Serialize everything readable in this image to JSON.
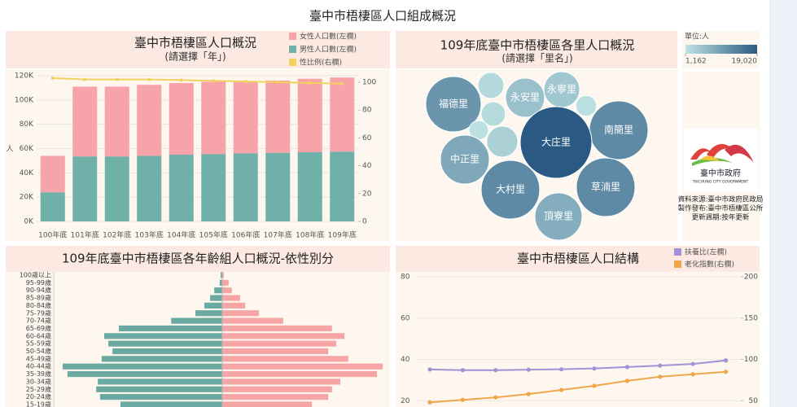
{
  "title": "臺中市梧棲區人口組成概況",
  "chart_data": [
    {
      "type": "bar",
      "stacked": true,
      "title": "臺中市梧棲區人口概況",
      "subtitle": "(請選擇「年」)",
      "ylabel": "人",
      "categories": [
        "100年底",
        "101年底",
        "102年底",
        "103年底",
        "104年底",
        "105年底",
        "106年底",
        "107年底",
        "108年底",
        "109年底"
      ],
      "series": [
        {
          "name": "女性人口數(左欄)",
          "color": "#f7a3aa",
          "values": [
            30000,
            57500,
            57500,
            58500,
            59000,
            59500,
            59500,
            59500,
            60500,
            61000
          ]
        },
        {
          "name": "男性人口數(左欄)",
          "color": "#6fb0a8",
          "values": [
            24000,
            53500,
            53500,
            54000,
            55000,
            55500,
            56000,
            56500,
            57000,
            57500
          ]
        },
        {
          "name": "性比例(右欄)",
          "color": "#f3d15e",
          "axis": "y2",
          "values": [
            103,
            102,
            102,
            102,
            101.5,
            101,
            100.5,
            100,
            99.5,
            99
          ]
        }
      ],
      "ylim": [
        0,
        120000
      ],
      "yticks": [
        {
          "value": 0,
          "label": "0K"
        },
        {
          "value": 20000,
          "label": "20K"
        },
        {
          "value": 40000,
          "label": "40K"
        },
        {
          "value": 60000,
          "label": "60K"
        },
        {
          "value": 80000,
          "label": "80K"
        },
        {
          "value": 100000,
          "label": "100K"
        },
        {
          "value": 120000,
          "label": "120K"
        }
      ],
      "y2lim": [
        0,
        100
      ],
      "y2ticks": [
        0,
        20,
        40,
        60,
        80,
        100
      ],
      "grid": true
    },
    {
      "type": "bubble",
      "title": "109年底臺中市梧棲區各里人口概況",
      "subtitle": "(請選擇「里名」)",
      "categories": [
        "福德里",
        null,
        "永安里",
        "永寧里",
        null,
        null,
        "南簡里",
        "大庄里",
        null,
        null,
        "中正里",
        "大村里",
        "草湳里",
        "頂寮里"
      ],
      "values": [
        11360,
        2500,
        5660,
        4760,
        2200,
        1600,
        12740,
        19020,
        1400,
        3600,
        8840,
        12700,
        12740,
        8260
      ],
      "legend_title": "單位:人",
      "color_range": [
        "#bfe3e3",
        "#2a5a84"
      ],
      "clim": [
        1162,
        19020
      ],
      "cticks": [
        {
          "value": 1162,
          "label": "1,162"
        },
        {
          "value": 19020,
          "label": "19,020"
        }
      ]
    },
    {
      "type": "pyramid",
      "title": "109年底臺中市梧棲區各年齡組人口概況-依性別分",
      "categories": [
        "100歲以上",
        "95-99歲",
        "90-94歲",
        "85-89歲",
        "80-84歲",
        "75-79歲",
        "70-74歲",
        "65-69歲",
        "60-64歲",
        "55-59歲",
        "50-54歲",
        "45-49歲",
        "40-44歲",
        "35-39歲",
        "30-34歲",
        "25-29歲",
        "20-24歲",
        "15-19歲"
      ],
      "series": [
        {
          "color": "#6aaaa3",
          "values": [
            50,
            80,
            250,
            380,
            560,
            840,
            1600,
            3240,
            3700,
            3570,
            3440,
            3780,
            5000,
            4850,
            3900,
            3950,
            3830,
            3190
          ]
        },
        {
          "color": "#f6a5a5",
          "values": [
            50,
            200,
            300,
            560,
            720,
            1150,
            1910,
            3440,
            3830,
            3570,
            3320,
            3950,
            5030,
            4850,
            3700,
            3440,
            3320,
            2810
          ]
        }
      ],
      "xlim": [
        0,
        5000
      ]
    },
    {
      "type": "line",
      "title": "臺中市梧棲區人口結構",
      "categories": [
        null,
        null,
        null,
        null,
        null,
        null,
        null,
        null,
        null,
        null
      ],
      "series": [
        {
          "name": "扶養比(左欄)",
          "color": "#a391d6",
          "values": [
            35.1,
            34.8,
            34.8,
            35.0,
            35.2,
            35.6,
            36.3,
            37.0,
            37.8,
            39.5
          ]
        },
        {
          "name": "老化指數(右欄)",
          "color": "#f0a548",
          "axis": "y2",
          "values": [
            48,
            51,
            54,
            58,
            63,
            68,
            74,
            79,
            82,
            85
          ]
        }
      ],
      "ylim": [
        0,
        80
      ],
      "yticks": [
        20,
        40,
        60,
        80
      ],
      "y2lim": [
        0,
        200
      ],
      "y2ticks": [
        50,
        100,
        150,
        200
      ]
    }
  ],
  "sidebar": {
    "logo_name": "臺中市政府",
    "logo_en": "TAICHUNG CITY GOVERNMENT",
    "notes": [
      "資料來源:臺中市政府民政局",
      "製作發布:臺中市梧棲區公所",
      "更新週期:按年更新"
    ]
  }
}
